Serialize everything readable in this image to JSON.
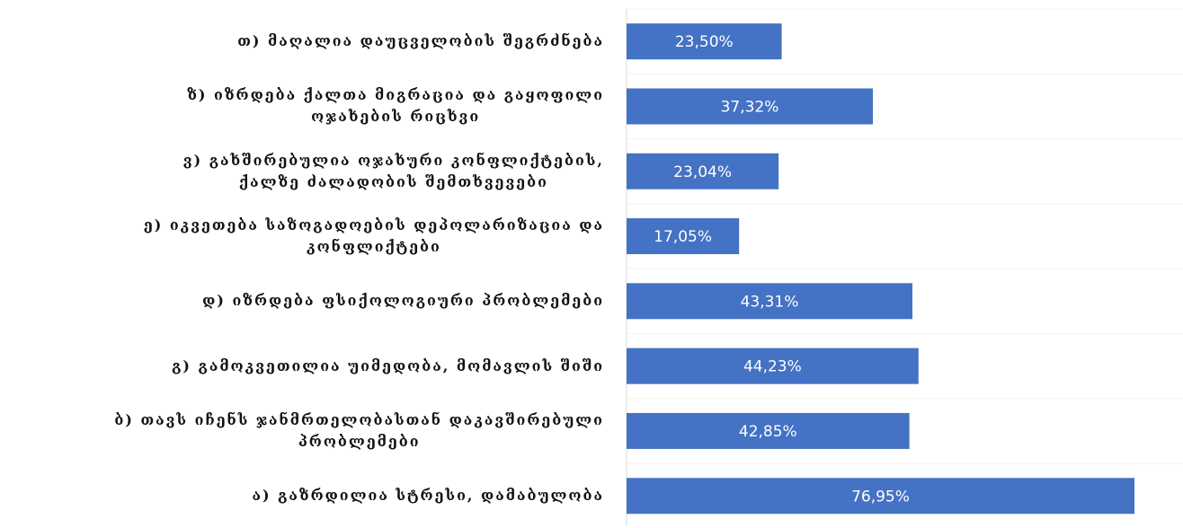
{
  "chart_data": {
    "type": "bar",
    "orientation": "horizontal",
    "categories": [
      "თ) მაღალია დაუცველობის შეგრძნება",
      "ზ) იზრდება ქალთა მიგრაცია და გაყოფილი\nოჯახების რიცხვი",
      "ვ) გახშირებულია ოჯახური კონფლიქტების,\nქალზე ძალადობის შემთხვევები",
      "ე) იკვეთება საზოგადოების დეპოლარიზაცია და\nკონფლიქტები",
      "დ) იზრდება ფსიქოლოგიური პრობლემები",
      "გ) გამოკვეთილია უიმედობა, მომავლის შიში",
      "ბ) თავს იჩენს ჯანმრთელობასთან დაკავშირებული\nპრობლემები",
      "ა) გაზრდილია სტრესი, დამაბულობა"
    ],
    "values": [
      23.5,
      37.32,
      23.04,
      17.05,
      43.31,
      44.23,
      42.85,
      76.95
    ],
    "value_labels": [
      "23,50%",
      "37,32%",
      "23,04%",
      "17,05%",
      "43,31%",
      "44,23%",
      "42,85%",
      "76,95%"
    ],
    "color": "#4472c4"
  }
}
